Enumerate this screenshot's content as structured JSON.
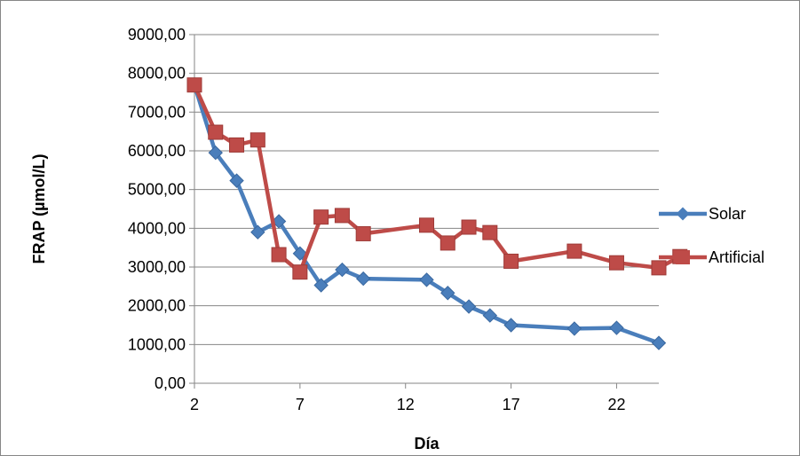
{
  "chart_data": {
    "type": "line",
    "xlabel": "Día",
    "ylabel": "FRAP (µmol/L)",
    "xlim": [
      2,
      24
    ],
    "ylim": [
      0,
      9000
    ],
    "x_ticks": [
      2,
      7,
      12,
      17,
      22
    ],
    "x_tick_labels": [
      "2",
      "7",
      "12",
      "17",
      "22"
    ],
    "y_ticks": [
      0,
      1000,
      2000,
      3000,
      4000,
      5000,
      6000,
      7000,
      8000,
      9000
    ],
    "y_tick_labels": [
      "0,00",
      "1000,00",
      "2000,00",
      "3000,00",
      "4000,00",
      "5000,00",
      "6000,00",
      "7000,00",
      "8000,00",
      "9000,00"
    ],
    "grid": "horizontal",
    "legend_position": "right",
    "series": [
      {
        "name": "Solar",
        "color": "#4A7EBB",
        "marker": "diamond",
        "points": [
          {
            "x": 2,
            "y": 7700
          },
          {
            "x": 3,
            "y": 5950
          },
          {
            "x": 4,
            "y": 5230
          },
          {
            "x": 5,
            "y": 3900
          },
          {
            "x": 6,
            "y": 4180
          },
          {
            "x": 7,
            "y": 3350
          },
          {
            "x": 8,
            "y": 2530
          },
          {
            "x": 9,
            "y": 2930
          },
          {
            "x": 10,
            "y": 2700
          },
          {
            "x": 13,
            "y": 2670
          },
          {
            "x": 14,
            "y": 2330
          },
          {
            "x": 15,
            "y": 1980
          },
          {
            "x": 16,
            "y": 1750
          },
          {
            "x": 17,
            "y": 1500
          },
          {
            "x": 20,
            "y": 1410
          },
          {
            "x": 22,
            "y": 1430
          },
          {
            "x": 24,
            "y": 1040
          }
        ]
      },
      {
        "name": "Artificial",
        "color": "#BE4B48",
        "marker": "square",
        "points": [
          {
            "x": 2,
            "y": 7700
          },
          {
            "x": 3,
            "y": 6480
          },
          {
            "x": 4,
            "y": 6150
          },
          {
            "x": 5,
            "y": 6280
          },
          {
            "x": 6,
            "y": 3320
          },
          {
            "x": 7,
            "y": 2870
          },
          {
            "x": 8,
            "y": 4290
          },
          {
            "x": 9,
            "y": 4330
          },
          {
            "x": 10,
            "y": 3860
          },
          {
            "x": 13,
            "y": 4080
          },
          {
            "x": 14,
            "y": 3620
          },
          {
            "x": 15,
            "y": 4030
          },
          {
            "x": 16,
            "y": 3890
          },
          {
            "x": 17,
            "y": 3150
          },
          {
            "x": 20,
            "y": 3410
          },
          {
            "x": 22,
            "y": 3110
          },
          {
            "x": 24,
            "y": 2980
          },
          {
            "x": 25,
            "y": 3270
          }
        ]
      }
    ]
  }
}
